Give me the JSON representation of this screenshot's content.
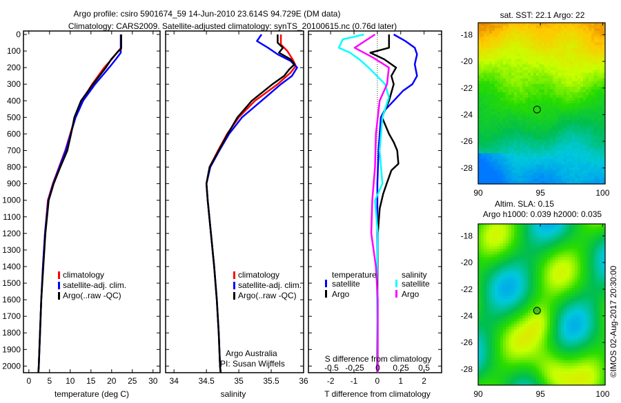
{
  "title_line1": "Argo profile: csiro 5901674_59 14-Jun-2010 23.614S 94.729E (DM data)",
  "title_line2": "Climatology: CARS2009. Satellite-adjusted climatology: synTS_20100615.nc (0.76d later)",
  "credit": "Argo Australia",
  "pi": "PI: Susan Wijffels",
  "copyright": "©IMOS 02-Aug-2017 20:30:00",
  "colors": {
    "climatology": "#ff0000",
    "satellite": "#0000ff",
    "argo": "#000000",
    "sal_satellite": "#00ffff",
    "sal_argo": "#ff00ff"
  },
  "chart_data": [
    {
      "type": "line",
      "name": "temperature-profile",
      "xlabel": "temperature (deg C)",
      "xlim": [
        -1.3,
        31.7
      ],
      "ylim": [
        0,
        2040
      ],
      "xticks": [
        "0",
        "5",
        "10",
        "15",
        "20",
        "25",
        "30"
      ],
      "yticks": [
        "0",
        "100",
        "200",
        "300",
        "400",
        "500",
        "600",
        "700",
        "800",
        "900",
        "1000",
        "1100",
        "1200",
        "1300",
        "1400",
        "1500",
        "1600",
        "1700",
        "1800",
        "1900",
        "2000"
      ],
      "legend": [
        "climatology",
        "satellite-adj. clim.",
        "Argo(..raw -QC)"
      ],
      "series": [
        {
          "name": "climatology",
          "color": "#ff0000",
          "points": [
            [
              22.3,
              0
            ],
            [
              22.3,
              80
            ],
            [
              21.6,
              100
            ],
            [
              20,
              150
            ],
            [
              18.2,
              200
            ],
            [
              15.3,
              300
            ],
            [
              12.8,
              400
            ],
            [
              11.2,
              500
            ],
            [
              10,
              600
            ],
            [
              8.8,
              700
            ],
            [
              7.3,
              800
            ],
            [
              5.8,
              900
            ],
            [
              4.6,
              1000
            ],
            [
              3.9,
              1200
            ],
            [
              3.4,
              1400
            ],
            [
              3,
              1600
            ],
            [
              2.7,
              1800
            ],
            [
              2.4,
              2000
            ],
            [
              2.3,
              2040
            ]
          ]
        },
        {
          "name": "satellite-adj. clim.",
          "color": "#0000ff",
          "points": [
            [
              22.2,
              0
            ],
            [
              22.2,
              110
            ],
            [
              21,
              150
            ],
            [
              19.4,
              200
            ],
            [
              16,
              300
            ],
            [
              13.1,
              400
            ],
            [
              11.3,
              500
            ],
            [
              10.1,
              600
            ],
            [
              8.9,
              700
            ],
            [
              7.4,
              800
            ],
            [
              5.9,
              900
            ],
            [
              4.7,
              1000
            ],
            [
              3.9,
              1200
            ],
            [
              3.4,
              1400
            ],
            [
              3,
              1600
            ],
            [
              2.7,
              1800
            ],
            [
              2.4,
              2000
            ],
            [
              2.3,
              2040
            ]
          ]
        },
        {
          "name": "Argo(..raw -QC)",
          "color": "#000000",
          "points": [
            [
              22.3,
              0
            ],
            [
              22.3,
              85
            ],
            [
              21.3,
              110
            ],
            [
              19.9,
              150
            ],
            [
              18.6,
              200
            ],
            [
              15.5,
              300
            ],
            [
              12.6,
              400
            ],
            [
              11,
              500
            ],
            [
              10.2,
              600
            ],
            [
              9.3,
              700
            ],
            [
              7.6,
              800
            ],
            [
              6,
              900
            ],
            [
              4.8,
              1000
            ],
            [
              4,
              1200
            ],
            [
              3.5,
              1400
            ],
            [
              3,
              1600
            ],
            [
              2.7,
              1800
            ],
            [
              2.4,
              2000
            ],
            [
              2.3,
              2040
            ]
          ]
        }
      ]
    },
    {
      "type": "line",
      "name": "salinity-profile",
      "xlabel": "salinity",
      "xlim": [
        33.87,
        36.0
      ],
      "ylim": [
        0,
        2040
      ],
      "xticks": [
        "34",
        "34.5",
        "35",
        "35.5",
        "36"
      ],
      "legend": [
        "climatology",
        "satellite-adj. clim.",
        "Argo(..raw -QC)"
      ],
      "series": [
        {
          "name": "climatology",
          "color": "#ff0000",
          "points": [
            [
              35.65,
              0
            ],
            [
              35.65,
              60
            ],
            [
              35.75,
              100
            ],
            [
              35.83,
              150
            ],
            [
              35.88,
              190
            ],
            [
              35.8,
              230
            ],
            [
              35.6,
              300
            ],
            [
              35.25,
              400
            ],
            [
              35.0,
              500
            ],
            [
              34.82,
              600
            ],
            [
              34.68,
              700
            ],
            [
              34.55,
              800
            ],
            [
              34.5,
              900
            ],
            [
              34.52,
              1000
            ],
            [
              34.57,
              1200
            ],
            [
              34.62,
              1400
            ],
            [
              34.66,
              1600
            ],
            [
              34.69,
              1800
            ],
            [
              34.71,
              2000
            ],
            [
              34.72,
              2040
            ]
          ]
        },
        {
          "name": "satellite-adj. clim.",
          "color": "#0000ff",
          "points": [
            [
              35.35,
              0
            ],
            [
              35.28,
              40
            ],
            [
              35.45,
              80
            ],
            [
              35.6,
              120
            ],
            [
              35.8,
              160
            ],
            [
              35.9,
              200
            ],
            [
              35.82,
              250
            ],
            [
              35.65,
              300
            ],
            [
              35.35,
              400
            ],
            [
              35.05,
              500
            ],
            [
              34.85,
              600
            ],
            [
              34.7,
              700
            ],
            [
              34.56,
              800
            ],
            [
              34.5,
              900
            ],
            [
              34.52,
              1000
            ],
            [
              34.57,
              1200
            ],
            [
              34.62,
              1400
            ],
            [
              34.66,
              1600
            ],
            [
              34.69,
              1800
            ],
            [
              34.71,
              2000
            ],
            [
              34.72,
              2040
            ]
          ]
        },
        {
          "name": "Argo(..raw -QC)",
          "color": "#000000",
          "points": [
            [
              35.6,
              0
            ],
            [
              35.6,
              50
            ],
            [
              35.68,
              80
            ],
            [
              35.62,
              110
            ],
            [
              35.8,
              150
            ],
            [
              35.86,
              180
            ],
            [
              35.78,
              210
            ],
            [
              35.7,
              250
            ],
            [
              35.52,
              300
            ],
            [
              35.2,
              400
            ],
            [
              34.98,
              500
            ],
            [
              34.83,
              600
            ],
            [
              34.69,
              700
            ],
            [
              34.55,
              800
            ],
            [
              34.5,
              900
            ],
            [
              34.52,
              1000
            ],
            [
              34.57,
              1200
            ],
            [
              34.62,
              1400
            ],
            [
              34.66,
              1600
            ],
            [
              34.69,
              1800
            ],
            [
              34.71,
              2000
            ],
            [
              34.72,
              2040
            ]
          ]
        }
      ]
    },
    {
      "type": "line",
      "name": "difference-profile",
      "xlabel": "T difference from climatology",
      "xlabel2": "S difference from climatology",
      "xlim": [
        -2.95,
        2.75
      ],
      "s_xlim": [
        -0.75,
        0.69
      ],
      "xticks": [
        "-2",
        "-1",
        "0",
        "1",
        "2"
      ],
      "s_xticks": [
        "-0.5",
        "-0.25",
        "0",
        "0.25",
        "0.5"
      ],
      "legend": {
        "temperature_heading": "temperature",
        "salinity_heading": "salinity",
        "t_satellite": "satellite",
        "t_argo": "Argo",
        "s_satellite": "satellite",
        "s_argo": "Argo"
      },
      "series": [
        {
          "name": "T satellite",
          "color": "#0000ff",
          "unit": "T",
          "points": [
            [
              0.7,
              0
            ],
            [
              1.2,
              40
            ],
            [
              1.6,
              80
            ],
            [
              1.7,
              120
            ],
            [
              1.6,
              180
            ],
            [
              1.7,
              250
            ],
            [
              1.5,
              300
            ],
            [
              1.1,
              340
            ],
            [
              0.7,
              400
            ],
            [
              0.3,
              460
            ],
            [
              0.15,
              500
            ],
            [
              0.05,
              700
            ],
            [
              0,
              900
            ],
            [
              0,
              1000
            ],
            [
              0,
              1500
            ],
            [
              0,
              2040
            ]
          ]
        },
        {
          "name": "T Argo",
          "color": "#000000",
          "unit": "T",
          "points": [
            [
              0.5,
              0
            ],
            [
              0.5,
              80
            ],
            [
              -0.3,
              110
            ],
            [
              0.3,
              150
            ],
            [
              0.8,
              200
            ],
            [
              0.6,
              250
            ],
            [
              0.7,
              300
            ],
            [
              0.5,
              400
            ],
            [
              0.2,
              500
            ],
            [
              0.5,
              600
            ],
            [
              0.7,
              650
            ],
            [
              0.85,
              700
            ],
            [
              0.9,
              780
            ],
            [
              0.6,
              820
            ],
            [
              0.4,
              900
            ],
            [
              0.25,
              960
            ],
            [
              0.1,
              1050
            ],
            [
              0.02,
              1200
            ],
            [
              0,
              1500
            ],
            [
              0,
              2040
            ]
          ]
        },
        {
          "name": "S satellite",
          "color": "#00ffff",
          "unit": "S",
          "points": [
            [
              -0.15,
              0
            ],
            [
              -0.38,
              30
            ],
            [
              -0.42,
              80
            ],
            [
              -0.3,
              110
            ],
            [
              -0.2,
              150
            ],
            [
              -0.1,
              200
            ],
            [
              0.08,
              300
            ],
            [
              0.12,
              380
            ],
            [
              0.05,
              500
            ],
            [
              0.02,
              700
            ],
            [
              0.05,
              900
            ],
            [
              -0.03,
              1000
            ],
            [
              0,
              1200
            ],
            [
              -0.01,
              1500
            ],
            [
              0,
              2040
            ]
          ]
        },
        {
          "name": "S Argo",
          "color": "#ff00ff",
          "unit": "S",
          "points": [
            [
              -0.03,
              0
            ],
            [
              -0.25,
              80
            ],
            [
              -0.05,
              140
            ],
            [
              0.12,
              200
            ],
            [
              0.1,
              300
            ],
            [
              0.02,
              400
            ],
            [
              -0.02,
              600
            ],
            [
              -0.03,
              800
            ],
            [
              -0.06,
              1000
            ],
            [
              -0.07,
              1200
            ],
            [
              -0.02,
              1400
            ],
            [
              0,
              1600
            ],
            [
              0,
              2040
            ]
          ]
        }
      ]
    },
    {
      "type": "heatmap",
      "name": "sst-map",
      "title": "sat. SST: 22.1  Argo: 22",
      "xlim": [
        90,
        100.2
      ],
      "ylim": [
        -29.2,
        -17.1
      ],
      "xticks": [
        "90",
        "95",
        "100"
      ],
      "yticks": [
        "-18",
        "-20",
        "-22",
        "-24",
        "-26",
        "-28"
      ],
      "marker": {
        "lon": 94.729,
        "lat": -23.614
      }
    },
    {
      "type": "heatmap",
      "name": "sla-map",
      "title": "Altim. SLA: 0.15",
      "subtitle": "Argo h1000: 0.039 h2000: 0.035",
      "xlim": [
        90,
        100.2
      ],
      "ylim": [
        -29.2,
        -17.1
      ],
      "xticks": [
        "90",
        "95",
        "100"
      ],
      "yticks": [
        "-18",
        "-20",
        "-22",
        "-24",
        "-26",
        "-28"
      ],
      "marker": {
        "lon": 94.729,
        "lat": -23.614
      }
    }
  ]
}
